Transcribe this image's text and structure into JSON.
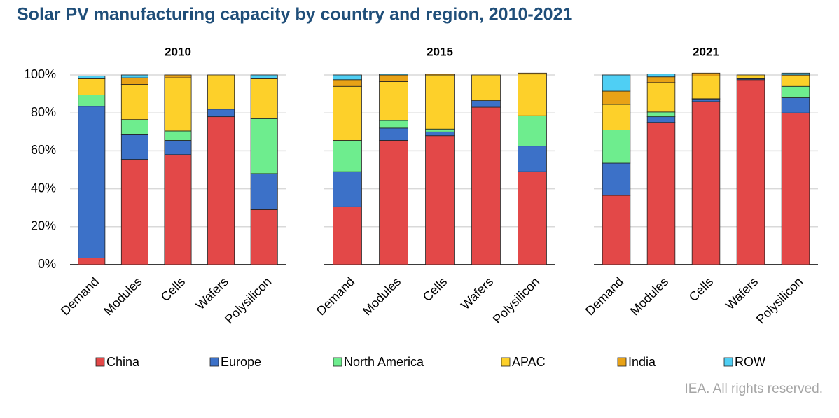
{
  "title": "Solar PV manufacturing capacity by country and region, 2010-2021",
  "footer": "IEA. All rights reserved.",
  "chart_data": [
    {
      "type": "bar",
      "stacked": true,
      "title": "2010",
      "categories": [
        "Demand",
        "Modules",
        "Cells",
        "Wafers",
        "Polysilicon"
      ],
      "ylim": [
        0,
        100
      ],
      "yticks": [
        {
          "value": 0,
          "label": "0%"
        },
        {
          "value": 20,
          "label": "20%"
        },
        {
          "value": 40,
          "label": "40%"
        },
        {
          "value": 60,
          "label": "60%"
        },
        {
          "value": 80,
          "label": "80%"
        },
        {
          "value": 100,
          "label": "100%"
        }
      ],
      "grid": true,
      "series": [
        {
          "name": "China",
          "color": "#e34848",
          "values": [
            3.5,
            55.5,
            58,
            78,
            29
          ]
        },
        {
          "name": "Europe",
          "color": "#3c71c8",
          "values": [
            80,
            13,
            7.5,
            4,
            19
          ]
        },
        {
          "name": "North America",
          "color": "#6eed8e",
          "values": [
            6,
            8,
            5,
            0,
            29
          ]
        },
        {
          "name": "APAC",
          "color": "#fdd02a",
          "values": [
            8.5,
            18.5,
            28,
            18,
            21
          ]
        },
        {
          "name": "India",
          "color": "#e8a216",
          "values": [
            0,
            3.5,
            1.5,
            0,
            0
          ]
        },
        {
          "name": "ROW",
          "color": "#4fcff4",
          "values": [
            1.5,
            1.5,
            0,
            0,
            2
          ]
        }
      ]
    },
    {
      "type": "bar",
      "stacked": true,
      "title": "2015",
      "categories": [
        "Demand",
        "Modules",
        "Cells",
        "Wafers",
        "Polysilicon"
      ],
      "ylim": [
        0,
        100
      ],
      "yticks": [
        {
          "value": 0,
          "label": "0%"
        },
        {
          "value": 20,
          "label": "20%"
        },
        {
          "value": 40,
          "label": "40%"
        },
        {
          "value": 60,
          "label": "60%"
        },
        {
          "value": 80,
          "label": "80%"
        },
        {
          "value": 100,
          "label": "100%"
        }
      ],
      "grid": true,
      "series": [
        {
          "name": "China",
          "color": "#e34848",
          "values": [
            30.5,
            65.5,
            68,
            83,
            49
          ]
        },
        {
          "name": "Europe",
          "color": "#3c71c8",
          "values": [
            18.5,
            6.5,
            2,
            3.5,
            13.5
          ]
        },
        {
          "name": "North America",
          "color": "#6eed8e",
          "values": [
            16.5,
            4,
            1.5,
            0,
            16
          ]
        },
        {
          "name": "APAC",
          "color": "#fdd02a",
          "values": [
            28.5,
            20.5,
            28.5,
            13.5,
            22
          ]
        },
        {
          "name": "India",
          "color": "#e8a216",
          "values": [
            3.5,
            3.5,
            0.5,
            0,
            0.5
          ]
        },
        {
          "name": "ROW",
          "color": "#4fcff4",
          "values": [
            2.5,
            0.5,
            0,
            0,
            0
          ]
        }
      ]
    },
    {
      "type": "bar",
      "stacked": true,
      "title": "2021",
      "categories": [
        "Demand",
        "Modules",
        "Cells",
        "Wafers",
        "Polysilicon"
      ],
      "ylim": [
        0,
        100
      ],
      "yticks": [
        {
          "value": 0,
          "label": "0%"
        },
        {
          "value": 20,
          "label": "20%"
        },
        {
          "value": 40,
          "label": "40%"
        },
        {
          "value": 60,
          "label": "60%"
        },
        {
          "value": 80,
          "label": "80%"
        },
        {
          "value": 100,
          "label": "100%"
        }
      ],
      "grid": true,
      "series": [
        {
          "name": "China",
          "color": "#e34848",
          "values": [
            36.5,
            75,
            86,
            97.5,
            80
          ]
        },
        {
          "name": "Europe",
          "color": "#3c71c8",
          "values": [
            17,
            3,
            1,
            0.5,
            8
          ]
        },
        {
          "name": "North America",
          "color": "#6eed8e",
          "values": [
            17.5,
            2.5,
            0.5,
            0,
            6
          ]
        },
        {
          "name": "APAC",
          "color": "#fdd02a",
          "values": [
            13.5,
            15.5,
            12,
            2,
            5.5
          ]
        },
        {
          "name": "India",
          "color": "#e8a216",
          "values": [
            7,
            3,
            1.5,
            0,
            0.5
          ]
        },
        {
          "name": "ROW",
          "color": "#4fcff4",
          "values": [
            8.5,
            1.5,
            0,
            0,
            1
          ]
        }
      ]
    }
  ]
}
